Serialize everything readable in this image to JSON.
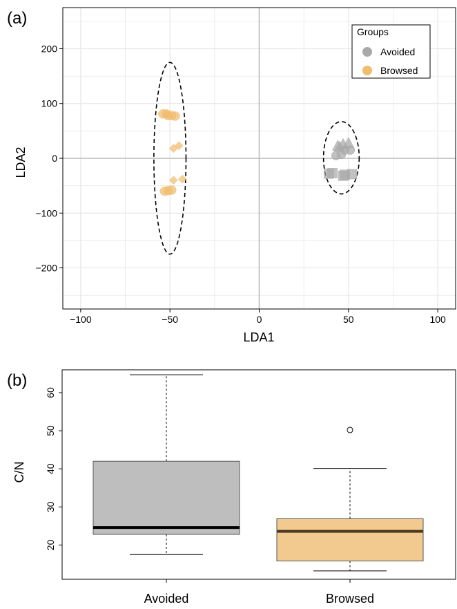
{
  "colors": {
    "avoided": "#a9a9a9",
    "browsed": "#f0bd6e",
    "avoided_box": "#bebebe",
    "browsed_box": "#f2c98f",
    "grid": "#e6e6e6",
    "zero_line": "#bdbdbd",
    "browsed_median": "#4a3a20"
  },
  "chart_data": [
    {
      "type": "scatter",
      "panel_label": "(a)",
      "xlabel": "LDA1",
      "ylabel": "LDA2",
      "xlim": [
        -110,
        110
      ],
      "ylim": [
        -275,
        275
      ],
      "xticks": [
        -100,
        -50,
        0,
        50,
        100
      ],
      "xtick_labels": [
        "−100",
        "−50",
        "0",
        "50",
        "100"
      ],
      "yticks": [
        -200,
        -100,
        0,
        100,
        200
      ],
      "ytick_labels": [
        "−200",
        "−100",
        "0",
        "100",
        "200"
      ],
      "grid": true,
      "legend": {
        "title": "Groups",
        "placement": "top-right",
        "entries": [
          "Avoided",
          "Browsed"
        ]
      },
      "series": [
        {
          "name": "Avoided",
          "color_key": "avoided",
          "points": [
            {
              "x": 43,
              "y": 5,
              "shape": "circle"
            },
            {
              "x": 46,
              "y": 7,
              "shape": "circle"
            },
            {
              "x": 48,
              "y": 15,
              "shape": "circle"
            },
            {
              "x": 51,
              "y": 15,
              "shape": "circle"
            },
            {
              "x": 44,
              "y": 22,
              "shape": "triangle"
            },
            {
              "x": 47,
              "y": 25,
              "shape": "triangle"
            },
            {
              "x": 50,
              "y": 27,
              "shape": "triangle"
            },
            {
              "x": 45,
              "y": 20,
              "shape": "triangle"
            },
            {
              "x": 39,
              "y": -28,
              "shape": "square"
            },
            {
              "x": 41,
              "y": -27,
              "shape": "square"
            },
            {
              "x": 47,
              "y": -32,
              "shape": "square"
            },
            {
              "x": 48,
              "y": -30,
              "shape": "square"
            },
            {
              "x": 52,
              "y": -29,
              "shape": "square"
            }
          ]
        },
        {
          "name": "Browsed",
          "color_key": "browsed",
          "points": [
            {
              "x": -54,
              "y": 81,
              "shape": "circle"
            },
            {
              "x": -52,
              "y": 81,
              "shape": "circle"
            },
            {
              "x": -51,
              "y": 78,
              "shape": "circle"
            },
            {
              "x": -49,
              "y": 78,
              "shape": "circle"
            },
            {
              "x": -47,
              "y": 77,
              "shape": "circle"
            },
            {
              "x": -48,
              "y": 18,
              "shape": "diamond"
            },
            {
              "x": -45,
              "y": 23,
              "shape": "diamond"
            },
            {
              "x": -48,
              "y": -40,
              "shape": "diamond"
            },
            {
              "x": -43,
              "y": -38,
              "shape": "diamond"
            },
            {
              "x": -53,
              "y": -60,
              "shape": "circle"
            },
            {
              "x": -51,
              "y": -59,
              "shape": "circle"
            },
            {
              "x": -49,
              "y": -58,
              "shape": "circle"
            }
          ]
        }
      ],
      "ellipses": [
        {
          "group": "Browsed",
          "cx": -50,
          "cy": 0,
          "rx": 9,
          "ry": 175
        },
        {
          "group": "Avoided",
          "cx": 46,
          "cy": 1,
          "rx": 10,
          "ry": 66
        }
      ]
    },
    {
      "type": "box",
      "panel_label": "(b)",
      "ylabel": "C/N",
      "categories": [
        "Avoided",
        "Browsed"
      ],
      "ylim": [
        11,
        66
      ],
      "yticks": [
        20,
        30,
        40,
        50,
        60
      ],
      "ytick_labels": [
        "20",
        "30",
        "40",
        "50",
        "60"
      ],
      "boxes": [
        {
          "name": "Avoided",
          "color_key": "avoided_box",
          "median_color_key": "black",
          "min": 17.5,
          "q1": 22.8,
          "median": 24.6,
          "q3": 42.0,
          "max": 64.7,
          "outliers": []
        },
        {
          "name": "Browsed",
          "color_key": "browsed_box",
          "median_color_key": "browsed_median",
          "min": 13.2,
          "q1": 15.8,
          "median": 23.6,
          "q3": 26.9,
          "max": 40.1,
          "outliers": [
            50.2
          ]
        }
      ]
    }
  ]
}
